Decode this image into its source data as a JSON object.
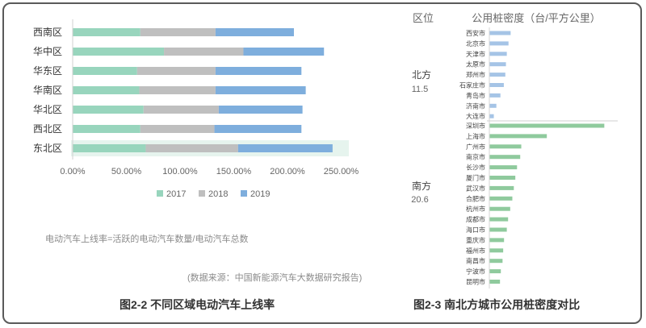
{
  "chart_data": [
    {
      "type": "bar",
      "stacked": true,
      "orientation": "horizontal",
      "categories": [
        "西南区",
        "华中区",
        "华东区",
        "华南区",
        "华北区",
        "西北区",
        "东北区"
      ],
      "series": [
        {
          "name": "2017",
          "values": [
            0.63,
            0.85,
            0.6,
            0.62,
            0.66,
            0.63,
            0.68
          ]
        },
        {
          "name": "2018",
          "values": [
            0.7,
            0.74,
            0.73,
            0.71,
            0.7,
            0.69,
            0.86
          ]
        },
        {
          "name": "2019",
          "values": [
            0.73,
            0.75,
            0.8,
            0.84,
            0.78,
            0.81,
            0.88
          ]
        }
      ],
      "colors": {
        "2017": "#98d5bd",
        "2018": "#bfbfbf",
        "2019": "#7eaedd"
      },
      "highlight_row": "东北区",
      "highlight_color": "#e6f4ee",
      "xlim": [
        0,
        2.5
      ],
      "xticks": [
        "0.00%",
        "50.00%",
        "100.00%",
        "150.00%",
        "200.00%",
        "250.00%"
      ],
      "legend_position": "bottom",
      "grid": false
    },
    {
      "type": "bar",
      "orientation": "horizontal",
      "header_region": "区位",
      "header_density": "公用桩密度（台/平方公里）",
      "groups": [
        {
          "name": "北方",
          "value": "11.5",
          "color": "#a5c4e6",
          "cities": [
            "西安市",
            "北京市",
            "天津市",
            "太原市",
            "郑州市",
            "石家庄市",
            "青岛市",
            "济南市",
            "大连市"
          ],
          "values": [
            10.0,
            9.0,
            8.2,
            7.8,
            7.5,
            6.8,
            5.2,
            3.3,
            2.1
          ]
        },
        {
          "name": "南方",
          "value": "20.6",
          "color": "#8fca9d",
          "cities": [
            "深圳市",
            "上海市",
            "广州市",
            "南京市",
            "长沙市",
            "厦门市",
            "武汉市",
            "合肥市",
            "杭州市",
            "成都市",
            "海口市",
            "重庆市",
            "福州市",
            "南昌市",
            "宁波市",
            "昆明市"
          ],
          "values": [
            54.0,
            27.0,
            15.0,
            14.5,
            13.0,
            12.2,
            11.5,
            10.8,
            9.8,
            8.8,
            8.2,
            6.9,
            6.5,
            6.2,
            5.4,
            5.0
          ]
        }
      ],
      "xlim": [
        0,
        55
      ]
    }
  ],
  "notes": {
    "formula": "电动汽车上线率=活跃的电动汽车数量/电动汽车总数",
    "source": "(数据来源：中国新能源汽车大数据研究报告)"
  },
  "captions": {
    "left": "图2-2 不同区域电动汽车上线率",
    "right": "图2-3 南北方城市公用桩密度对比"
  }
}
